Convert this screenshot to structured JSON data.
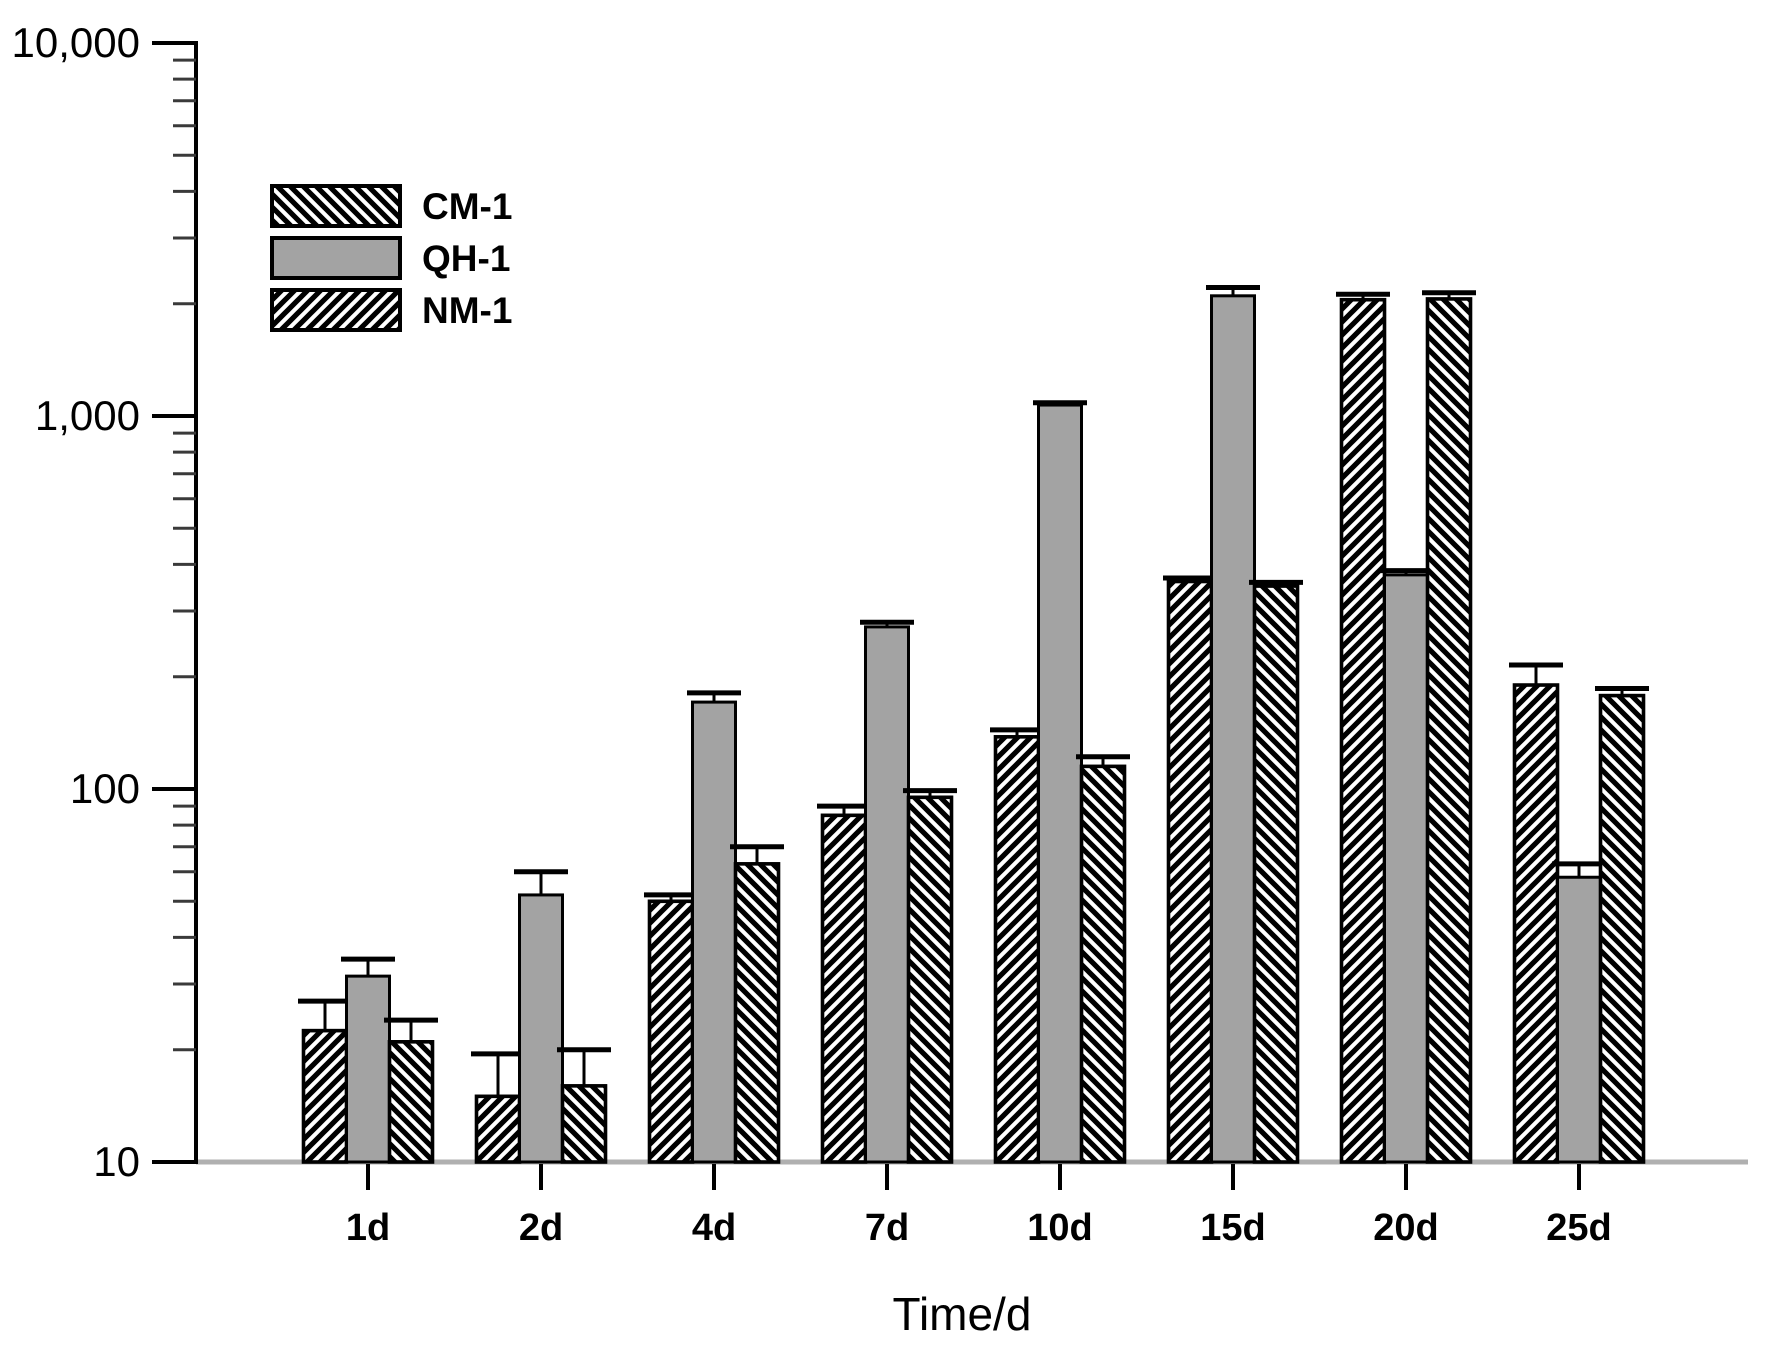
{
  "chart_data": {
    "type": "bar",
    "title": "",
    "xlabel": "Time/d",
    "ylabel": "",
    "scale": "log",
    "ylim": [
      10,
      10000
    ],
    "yticks": [
      "10",
      "100",
      "1,000",
      "10,000"
    ],
    "ytick_values": [
      10,
      100,
      1000,
      10000
    ],
    "grid": false,
    "legend_position": "top-left",
    "categories": [
      "1d",
      "2d",
      "4d",
      "7d",
      "10d",
      "15d",
      "20d",
      "25d"
    ],
    "series": [
      {
        "name": "CM-1",
        "style": "hatch",
        "hatch": "/",
        "values": [
          22.5,
          15,
          50,
          85,
          138,
          360,
          2050,
          190
        ],
        "errors_high": [
          27,
          19.5,
          52,
          90,
          144,
          368,
          2120,
          215
        ]
      },
      {
        "name": "QH-1",
        "style": "solid",
        "fill": "#a3a3a3",
        "values": [
          31.5,
          52,
          171,
          272,
          1070,
          2100,
          375,
          58
        ],
        "errors_high": [
          35,
          60,
          181,
          280,
          1085,
          2210,
          385,
          63
        ]
      },
      {
        "name": "NM-1",
        "style": "hatch",
        "hatch": "\\",
        "values": [
          21,
          16,
          63,
          95,
          115,
          350,
          2060,
          178
        ],
        "errors_high": [
          24,
          20,
          70,
          99,
          122,
          358,
          2140,
          186
        ]
      }
    ],
    "legend": [
      {
        "label": "CM-1",
        "swatch": "hatch-back"
      },
      {
        "label": "QH-1",
        "swatch": "solid-gray"
      },
      {
        "label": "NM-1",
        "swatch": "hatch-fwd"
      }
    ]
  },
  "colors": {
    "axis": "#000000",
    "baseline": "#b0b0b0",
    "solid_bar": "#a3a3a3",
    "hatch_line": "#000000",
    "background": "#ffffff"
  }
}
